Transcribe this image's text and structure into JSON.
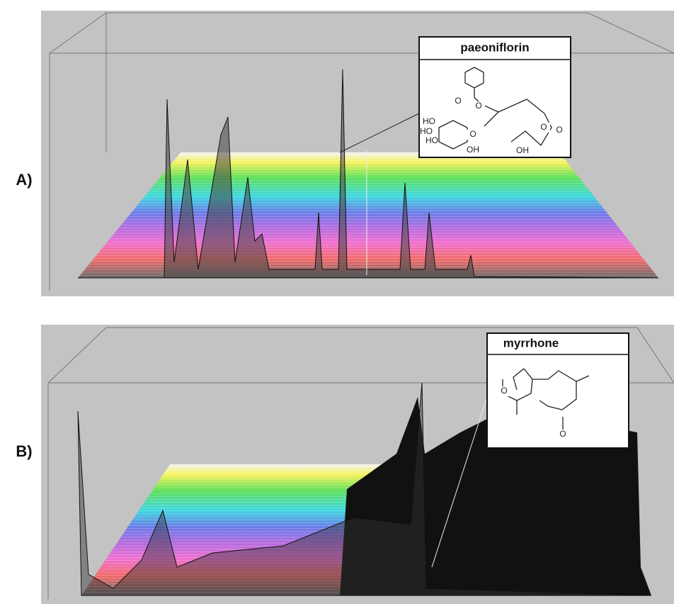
{
  "panels": [
    {
      "label": "A)",
      "compound": {
        "name": "paeoniflorin",
        "atoms": [
          "O",
          "O",
          "HO",
          "HO",
          "HO",
          "O",
          "OH",
          "O",
          "O",
          "OH"
        ]
      }
    },
    {
      "label": "B)",
      "compound": {
        "name": "myrrhone",
        "atoms": [
          "O",
          "O"
        ]
      }
    }
  ]
}
